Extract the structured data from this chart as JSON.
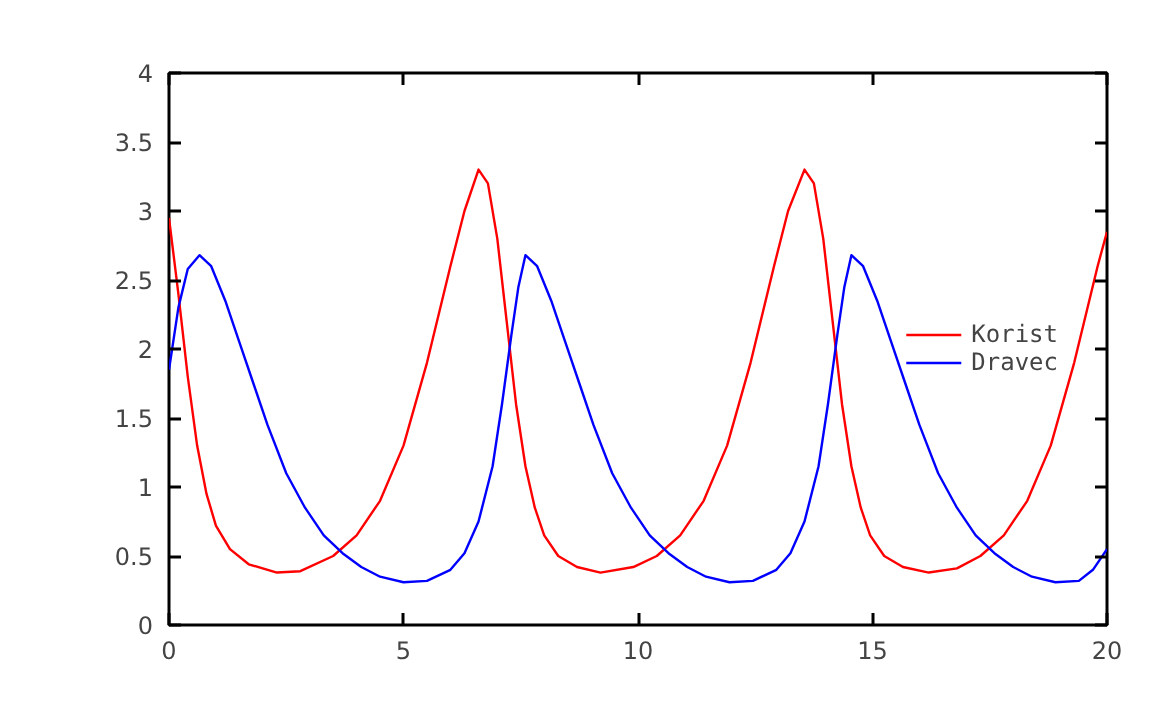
{
  "chart_data": {
    "type": "line",
    "xlim": [
      0,
      20
    ],
    "ylim": [
      0,
      4
    ],
    "xticks": [
      0,
      5,
      10,
      15,
      20
    ],
    "yticks": [
      0,
      0.5,
      1,
      1.5,
      2,
      2.5,
      3,
      3.5,
      4
    ],
    "grid": false,
    "legend": "right",
    "line_style": "solid",
    "marker": "none",
    "series": [
      {
        "name": "Korist",
        "color": "#ff0000",
        "x": [
          0,
          0.2,
          0.4,
          0.6,
          0.8,
          1.0,
          1.3,
          1.7,
          2.3,
          2.8,
          3.5,
          4,
          4.5,
          5,
          5.5,
          6,
          6.3,
          6.6,
          6.8,
          7.0,
          7.2,
          7.4,
          7.6,
          7.8,
          8.0,
          8.3,
          8.7,
          9.2,
          9.9,
          10.4,
          10.9,
          11.4,
          11.9,
          12.4,
          12.9,
          13.2,
          13.55,
          13.75,
          13.95,
          14.15,
          14.35,
          14.55,
          14.75,
          14.95,
          15.25,
          15.65,
          16.2,
          16.8,
          17.3,
          17.8,
          18.3,
          18.8,
          19.3,
          19.8,
          20
        ],
        "values": [
          2.95,
          2.4,
          1.8,
          1.3,
          0.95,
          0.72,
          0.55,
          0.44,
          0.38,
          0.39,
          0.5,
          0.65,
          0.9,
          1.3,
          1.9,
          2.6,
          3.0,
          3.3,
          3.2,
          2.8,
          2.2,
          1.6,
          1.15,
          0.85,
          0.65,
          0.5,
          0.42,
          0.38,
          0.42,
          0.5,
          0.65,
          0.9,
          1.3,
          1.9,
          2.6,
          3.0,
          3.3,
          3.2,
          2.8,
          2.2,
          1.6,
          1.15,
          0.85,
          0.65,
          0.5,
          0.42,
          0.38,
          0.41,
          0.5,
          0.65,
          0.9,
          1.3,
          1.9,
          2.6,
          2.85
        ]
      },
      {
        "name": "Dravec",
        "color": "#0000ff",
        "x": [
          0,
          0.2,
          0.4,
          0.65,
          0.9,
          1.2,
          1.5,
          1.8,
          2.1,
          2.5,
          2.9,
          3.3,
          3.7,
          4.1,
          4.5,
          5.0,
          5.5,
          6.0,
          6.3,
          6.6,
          6.9,
          7.1,
          7.3,
          7.45,
          7.6,
          7.85,
          8.15,
          8.45,
          8.75,
          9.05,
          9.45,
          9.85,
          10.25,
          10.65,
          11.05,
          11.45,
          11.95,
          12.45,
          12.95,
          13.25,
          13.55,
          13.85,
          14.05,
          14.25,
          14.4,
          14.55,
          14.8,
          15.1,
          15.4,
          15.7,
          16.0,
          16.4,
          16.8,
          17.2,
          17.6,
          18.0,
          18.4,
          18.9,
          19.4,
          19.7,
          20
        ],
        "values": [
          1.85,
          2.3,
          2.58,
          2.68,
          2.6,
          2.35,
          2.05,
          1.75,
          1.45,
          1.1,
          0.85,
          0.65,
          0.52,
          0.42,
          0.35,
          0.31,
          0.32,
          0.4,
          0.52,
          0.75,
          1.15,
          1.6,
          2.1,
          2.45,
          2.68,
          2.6,
          2.35,
          2.05,
          1.75,
          1.45,
          1.1,
          0.85,
          0.65,
          0.52,
          0.42,
          0.35,
          0.31,
          0.32,
          0.4,
          0.52,
          0.75,
          1.15,
          1.6,
          2.1,
          2.45,
          2.68,
          2.6,
          2.35,
          2.05,
          1.75,
          1.45,
          1.1,
          0.85,
          0.65,
          0.52,
          0.42,
          0.35,
          0.31,
          0.32,
          0.4,
          0.55
        ]
      }
    ]
  }
}
